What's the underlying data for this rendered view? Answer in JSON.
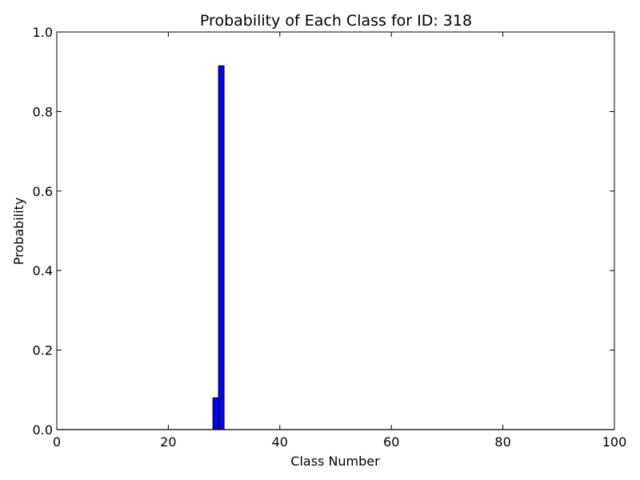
{
  "chart_data": {
    "type": "bar",
    "title": "Probability of Each Class for ID: 318",
    "xlabel": "Class Number",
    "ylabel": "Probability",
    "xlim": [
      0,
      100
    ],
    "ylim": [
      0.0,
      1.0
    ],
    "xticks": [
      "0",
      "20",
      "40",
      "60",
      "80",
      "100"
    ],
    "yticks": [
      "0.0",
      "0.2",
      "0.4",
      "0.6",
      "0.8",
      "1.0"
    ],
    "bar_width": 1,
    "num_classes": 100,
    "x": [
      28,
      29
    ],
    "values": [
      0.08,
      0.915
    ],
    "bar_color": "#0000ff",
    "edge_color": "#000000",
    "grid": false,
    "legend": "none"
  }
}
